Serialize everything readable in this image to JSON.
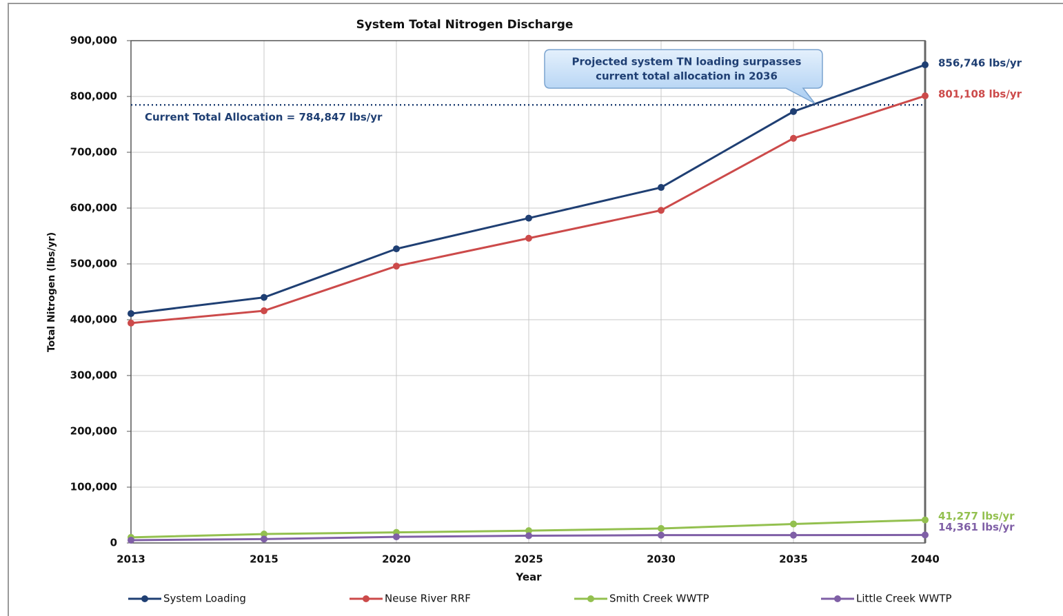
{
  "chart_data": {
    "type": "line",
    "title": "System Total Nitrogen Discharge",
    "x_label": "Year",
    "y_label": "Total Nitrogen (lbs/yr)",
    "categories": [
      "2013",
      "2015",
      "2020",
      "2025",
      "2030",
      "2035",
      "2040"
    ],
    "series": [
      {
        "name": "System Loading",
        "color": "#1f3f73",
        "values": [
          411000,
          440000,
          527000,
          582000,
          637000,
          773000,
          856746
        ],
        "value_labels": [
          null,
          null,
          null,
          null,
          null,
          null,
          "856,746 lbs/yr"
        ]
      },
      {
        "name": "Neuse River RRF",
        "color": "#cc4a4a",
        "values": [
          394000,
          416000,
          496000,
          546000,
          596000,
          725000,
          801108
        ],
        "value_labels": [
          null,
          null,
          null,
          null,
          null,
          null,
          "801,108 lbs/yr"
        ]
      },
      {
        "name": "Smith Creek WWTP",
        "color": "#93c04f",
        "values": [
          10000,
          16000,
          19000,
          22000,
          26000,
          34000,
          41277
        ],
        "value_labels": [
          null,
          null,
          null,
          null,
          null,
          null,
          "41,277 lbs/yr"
        ]
      },
      {
        "name": "Little Creek WWTP",
        "color": "#7f5fa6",
        "values": [
          5000,
          7000,
          11000,
          13000,
          14000,
          14000,
          14361
        ],
        "value_labels": [
          null,
          null,
          null,
          null,
          null,
          null,
          "14,361 lbs/yr"
        ]
      }
    ],
    "reference_line": {
      "value": 784847,
      "label": "Current Total Allocation = 784,847 lbs/yr",
      "color": "#1f3f73"
    },
    "annotation": [
      "Projected system TN loading surpasses",
      "current total allocation in 2036"
    ],
    "ylim": [
      0,
      900000
    ],
    "yticks": [
      0,
      {
        "value": 100000,
        "label": "100,000"
      },
      {
        "value": 200000,
        "label": "200,000"
      },
      {
        "value": 300000,
        "label": "300,000"
      },
      {
        "value": 400000,
        "label": "400,000"
      },
      {
        "value": 500000,
        "label": "500,000"
      },
      {
        "value": 600000,
        "label": "600,000"
      },
      {
        "value": 700000,
        "label": "700,000"
      },
      {
        "value": 800000,
        "label": "800,000"
      },
      {
        "value": 900000,
        "label": "900,000"
      }
    ],
    "grid": true,
    "legend": "bottom"
  }
}
